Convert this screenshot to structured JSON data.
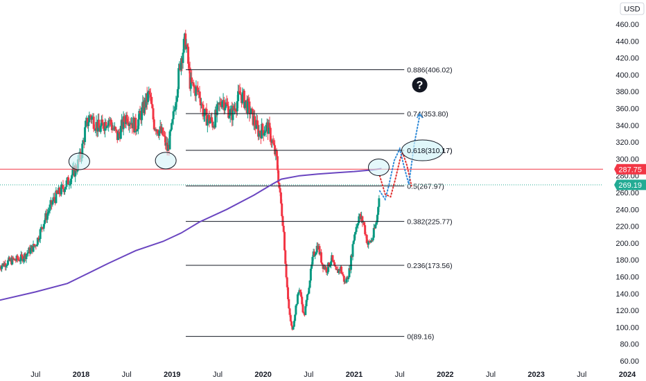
{
  "chart_data": {
    "type": "candlestick",
    "currency": "USD",
    "y_axis": {
      "ticks": [
        460,
        440,
        420,
        400,
        380,
        360,
        340,
        320,
        300,
        280,
        260,
        240,
        220,
        200,
        180,
        160,
        140,
        120,
        100,
        80,
        60
      ],
      "tick_labels": [
        "460.00",
        "440.00",
        "420.00",
        "400.00",
        "380.00",
        "360.00",
        "340.00",
        "320.00",
        "300.00",
        "280.00",
        "260.00",
        "240.00",
        "220.00",
        "200.00",
        "180.00",
        "160.00",
        "140.00",
        "120.00",
        "100.00",
        "80.00",
        "60.00"
      ],
      "range": [
        58,
        472
      ],
      "position": "right"
    },
    "x_axis": {
      "ticks": [
        {
          "label": "Jul",
          "t": 2017.5,
          "year": false
        },
        {
          "label": "2018",
          "t": 2018.0,
          "year": true
        },
        {
          "label": "Jul",
          "t": 2018.5,
          "year": false
        },
        {
          "label": "2019",
          "t": 2019.0,
          "year": true
        },
        {
          "label": "Jul",
          "t": 2019.5,
          "year": false
        },
        {
          "label": "2020",
          "t": 2020.0,
          "year": true
        },
        {
          "label": "Jul",
          "t": 2020.5,
          "year": false
        },
        {
          "label": "2021",
          "t": 2021.0,
          "year": true
        },
        {
          "label": "Jul",
          "t": 2021.5,
          "year": false
        },
        {
          "label": "2022",
          "t": 2022.0,
          "year": true
        },
        {
          "label": "Jul",
          "t": 2022.5,
          "year": false
        },
        {
          "label": "2023",
          "t": 2023.0,
          "year": true
        },
        {
          "label": "Jul",
          "t": 2023.5,
          "year": false
        },
        {
          "label": "2024",
          "t": 2024.0,
          "year": true
        }
      ],
      "range": [
        2017.1,
        2024.08
      ]
    },
    "price_path": [
      [
        2017.1,
        172
      ],
      [
        2017.2,
        178
      ],
      [
        2017.35,
        182
      ],
      [
        2017.5,
        198
      ],
      [
        2017.6,
        228
      ],
      [
        2017.7,
        252
      ],
      [
        2017.85,
        272
      ],
      [
        2017.95,
        290
      ],
      [
        2018.0,
        305
      ],
      [
        2018.05,
        338
      ],
      [
        2018.1,
        352
      ],
      [
        2018.2,
        335
      ],
      [
        2018.3,
        348
      ],
      [
        2018.4,
        326
      ],
      [
        2018.5,
        352
      ],
      [
        2018.6,
        338
      ],
      [
        2018.75,
        378
      ],
      [
        2018.8,
        342
      ],
      [
        2018.9,
        328
      ],
      [
        2018.95,
        310
      ],
      [
        2019.0,
        338
      ],
      [
        2019.05,
        382
      ],
      [
        2019.1,
        422
      ],
      [
        2019.15,
        442
      ],
      [
        2019.2,
        388
      ],
      [
        2019.3,
        378
      ],
      [
        2019.35,
        352
      ],
      [
        2019.45,
        342
      ],
      [
        2019.55,
        372
      ],
      [
        2019.65,
        352
      ],
      [
        2019.75,
        378
      ],
      [
        2019.85,
        358
      ],
      [
        2019.95,
        332
      ],
      [
        2020.05,
        338
      ],
      [
        2020.1,
        320
      ],
      [
        2020.15,
        298
      ],
      [
        2020.18,
        262
      ],
      [
        2020.22,
        222
      ],
      [
        2020.25,
        168
      ],
      [
        2020.28,
        122
      ],
      [
        2020.32,
        95
      ],
      [
        2020.36,
        125
      ],
      [
        2020.4,
        148
      ],
      [
        2020.42,
        132
      ],
      [
        2020.45,
        112
      ],
      [
        2020.5,
        148
      ],
      [
        2020.55,
        185
      ],
      [
        2020.6,
        198
      ],
      [
        2020.65,
        175
      ],
      [
        2020.7,
        168
      ],
      [
        2020.75,
        182
      ],
      [
        2020.8,
        165
      ],
      [
        2020.85,
        170
      ],
      [
        2020.9,
        152
      ],
      [
        2020.95,
        168
      ],
      [
        2021.0,
        210
      ],
      [
        2021.05,
        232
      ],
      [
        2021.1,
        225
      ],
      [
        2021.15,
        198
      ],
      [
        2021.2,
        205
      ],
      [
        2021.25,
        228
      ],
      [
        2021.28,
        268
      ]
    ],
    "moving_average_200": [
      [
        2017.1,
        132
      ],
      [
        2017.5,
        142
      ],
      [
        2017.85,
        152
      ],
      [
        2018.0,
        160
      ],
      [
        2018.3,
        176
      ],
      [
        2018.6,
        191
      ],
      [
        2018.9,
        202
      ],
      [
        2019.1,
        212
      ],
      [
        2019.3,
        225
      ],
      [
        2019.6,
        240
      ],
      [
        2019.9,
        257
      ],
      [
        2020.1,
        270
      ],
      [
        2020.2,
        276
      ],
      [
        2020.4,
        280
      ],
      [
        2020.6,
        282
      ],
      [
        2020.8,
        283.5
      ],
      [
        2021.0,
        285
      ],
      [
        2021.2,
        287
      ],
      [
        2021.3,
        288.5
      ]
    ],
    "fibonacci": {
      "x_start": 2019.15,
      "x_end": 2021.55,
      "levels": [
        {
          "ratio": "0.886",
          "value": 406.02,
          "label": "0.886(406.02)"
        },
        {
          "ratio": "0.74",
          "value": 353.8,
          "label": "0.74(353.80)"
        },
        {
          "ratio": "0.618",
          "value": 310.17,
          "label": "0.618(310.17)"
        },
        {
          "ratio": "0.5",
          "value": 267.97,
          "label": "0.5(267.97)"
        },
        {
          "ratio": "0.382",
          "value": 225.77,
          "label": "0.382(225.77)"
        },
        {
          "ratio": "0.236",
          "value": 173.56,
          "label": "0.236(173.56)"
        },
        {
          "ratio": "0",
          "value": 89.16,
          "label": "0(89.16)"
        }
      ]
    },
    "horizontal_line": {
      "value": 287.75,
      "label": "287.75",
      "color": "#f23645"
    },
    "last_price": {
      "value": 269.19,
      "label": "269.19",
      "color": "#22ab94"
    },
    "projection_red": [
      [
        2021.28,
        280
      ],
      [
        2021.34,
        258
      ],
      [
        2021.4,
        255
      ],
      [
        2021.45,
        275
      ],
      [
        2021.5,
        298
      ],
      [
        2021.53,
        308
      ],
      [
        2021.58,
        292
      ],
      [
        2021.63,
        268
      ]
    ],
    "projection_blue": [
      [
        2021.28,
        262
      ],
      [
        2021.34,
        252
      ],
      [
        2021.38,
        268
      ],
      [
        2021.44,
        298
      ],
      [
        2021.5,
        312
      ],
      [
        2021.55,
        290
      ],
      [
        2021.6,
        270
      ],
      [
        2021.66,
        318
      ],
      [
        2021.72,
        352
      ]
    ],
    "support_ellipses": [
      {
        "t": 2017.98,
        "value": 297
      },
      {
        "t": 2018.93,
        "value": 298
      },
      {
        "t": 2021.27,
        "value": 290
      }
    ],
    "target_ellipse": {
      "t": 2021.75,
      "value": 310.17
    },
    "question_mark": {
      "t": 2021.72,
      "value": 388,
      "text": "?"
    },
    "colors": {
      "up": "#089981",
      "down": "#f23645",
      "ma": "#6a45c0",
      "fib_line": "#131722",
      "ellipse_fill": "#d3f3f8",
      "red_projection": "#e03131",
      "blue_projection": "#2f8ad8"
    },
    "grid": false
  }
}
